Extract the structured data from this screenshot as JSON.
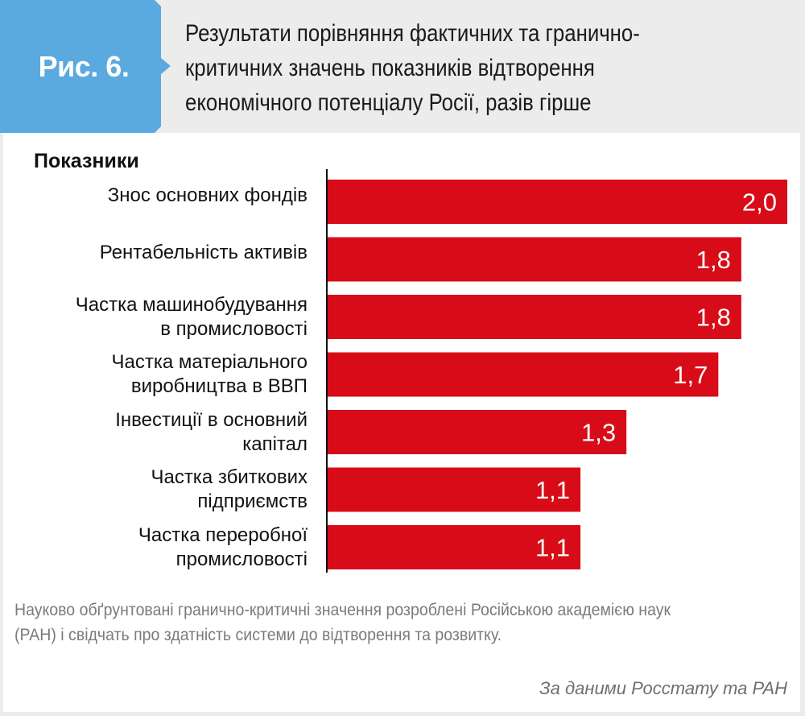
{
  "figure": {
    "label": "Рис. 6.",
    "title_lines": [
      "Результати порівняння фактичних та гранично-",
      "критичних значень показників відтворення",
      "економічного потенціалу Росії, разів гірше"
    ],
    "colors": {
      "badge": "#5aa9df",
      "bar": "#d80c18",
      "header_bg": "#ececec"
    }
  },
  "chart_data": {
    "type": "bar",
    "orientation": "horizontal",
    "title": "Результати порівняння фактичних та гранично-критичних значень показників відтворення економічного потенціалу Росії, разів гірше",
    "category_header": "Показники",
    "categories": [
      [
        "Знос основних фондів"
      ],
      [
        "Рентабельність активів"
      ],
      [
        "Частка машинобудування",
        "в промисловості"
      ],
      [
        "Частка матеріального",
        "виробництва в ВВП"
      ],
      [
        "Інвестиції в основний",
        "капітал"
      ],
      [
        "Частка збиткових",
        "підприємств"
      ],
      [
        "Частка переробної",
        "промисловості"
      ]
    ],
    "values": [
      2.0,
      1.8,
      1.8,
      1.7,
      1.3,
      1.1,
      1.1
    ],
    "value_labels": [
      "2,0",
      "1,8",
      "1,8",
      "1,7",
      "1,3",
      "1,1",
      "1,1"
    ],
    "xlabel": "",
    "ylabel": "",
    "xlim": [
      0,
      2.0
    ],
    "grid": false,
    "legend": "none"
  },
  "footer": {
    "note": "Науково обґрунтовані гранично-критичні значення розроблені Російською академією наук (РАН) і свідчать про здатність системи до відтворення та розвитку.",
    "source": "За даними Росстату та РАН"
  }
}
